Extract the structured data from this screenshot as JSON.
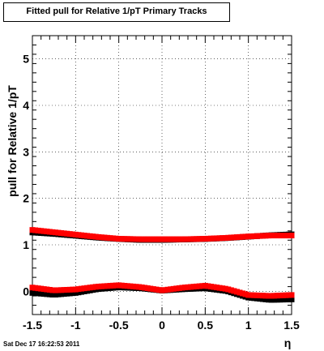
{
  "chart_data": {
    "type": "scatter",
    "title": "Fitted pull for Relative 1/pT  Primary Tracks",
    "xlabel": "η",
    "ylabel": "pull for Relative 1/pT",
    "xlim": [
      -1.5,
      1.5
    ],
    "ylim": [
      -0.5,
      5.5
    ],
    "x_ticks": [
      -1.5,
      -1,
      -0.5,
      0,
      0.5,
      1,
      1.5
    ],
    "x_tick_labels": [
      "-1.5",
      "-1",
      "-0.5",
      "0",
      "0.5",
      "1",
      "1.5"
    ],
    "y_ticks": [
      0,
      1,
      2,
      3,
      4,
      5
    ],
    "y_tick_labels": [
      "0",
      "1",
      "2",
      "3",
      "4",
      "5"
    ],
    "grid": true,
    "series": [
      {
        "color": "#ff0000",
        "x": [
          -1.5,
          -1.25,
          -1.0,
          -0.75,
          -0.5,
          -0.25,
          0.0,
          0.25,
          0.5,
          0.75,
          1.0,
          1.25,
          1.5
        ],
        "y_upper": [
          1.32,
          1.27,
          1.22,
          1.17,
          1.13,
          1.12,
          1.12,
          1.12,
          1.13,
          1.15,
          1.18,
          1.2,
          1.2
        ],
        "y_lower": [
          0.08,
          0.02,
          0.04,
          0.1,
          0.13,
          0.09,
          0.02,
          0.08,
          0.12,
          0.05,
          -0.08,
          -0.1,
          -0.08
        ]
      },
      {
        "color": "#000000",
        "x": [
          -1.5,
          -1.25,
          -1.0,
          -0.75,
          -0.5,
          -0.25,
          0.0,
          0.25,
          0.5,
          0.75,
          1.0,
          1.25,
          1.5
        ],
        "y_upper": [
          1.3,
          1.27,
          1.23,
          1.19,
          1.16,
          1.14,
          1.14,
          1.15,
          1.16,
          1.18,
          1.21,
          1.24,
          1.26
        ],
        "y_lower": [
          0.0,
          -0.04,
          0.0,
          0.08,
          0.12,
          0.1,
          0.05,
          0.08,
          0.1,
          0.04,
          -0.1,
          -0.15,
          -0.14
        ]
      }
    ]
  },
  "footer": {
    "timestamp": "Sat Dec 17 16:22:53 2011"
  }
}
